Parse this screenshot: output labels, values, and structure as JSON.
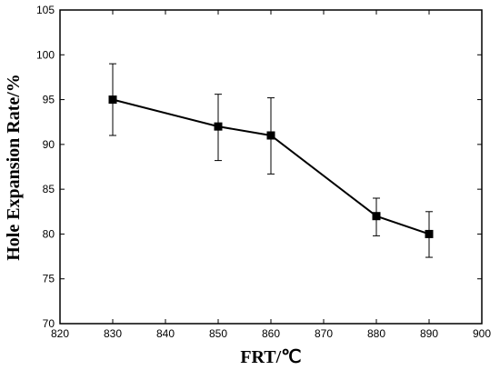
{
  "chart_data": {
    "type": "line",
    "title": "",
    "xlabel": "FRT/℃",
    "ylabel": "Hole Expansion Rate/%",
    "xlim": [
      820,
      900
    ],
    "ylim": [
      70,
      105
    ],
    "xticks": [
      820,
      830,
      840,
      850,
      860,
      870,
      880,
      890,
      900
    ],
    "yticks": [
      70,
      75,
      80,
      85,
      90,
      95,
      100,
      105
    ],
    "grid": false,
    "legend": "none",
    "series": [
      {
        "color": "#000000",
        "marker": "square",
        "x": [
          830,
          850,
          860,
          880,
          890
        ],
        "y": [
          95,
          92,
          91,
          82,
          80
        ],
        "err_low": [
          91,
          88.2,
          86.7,
          79.8,
          77.4
        ],
        "err_high": [
          99,
          95.6,
          95.2,
          84,
          82.5
        ]
      }
    ]
  }
}
